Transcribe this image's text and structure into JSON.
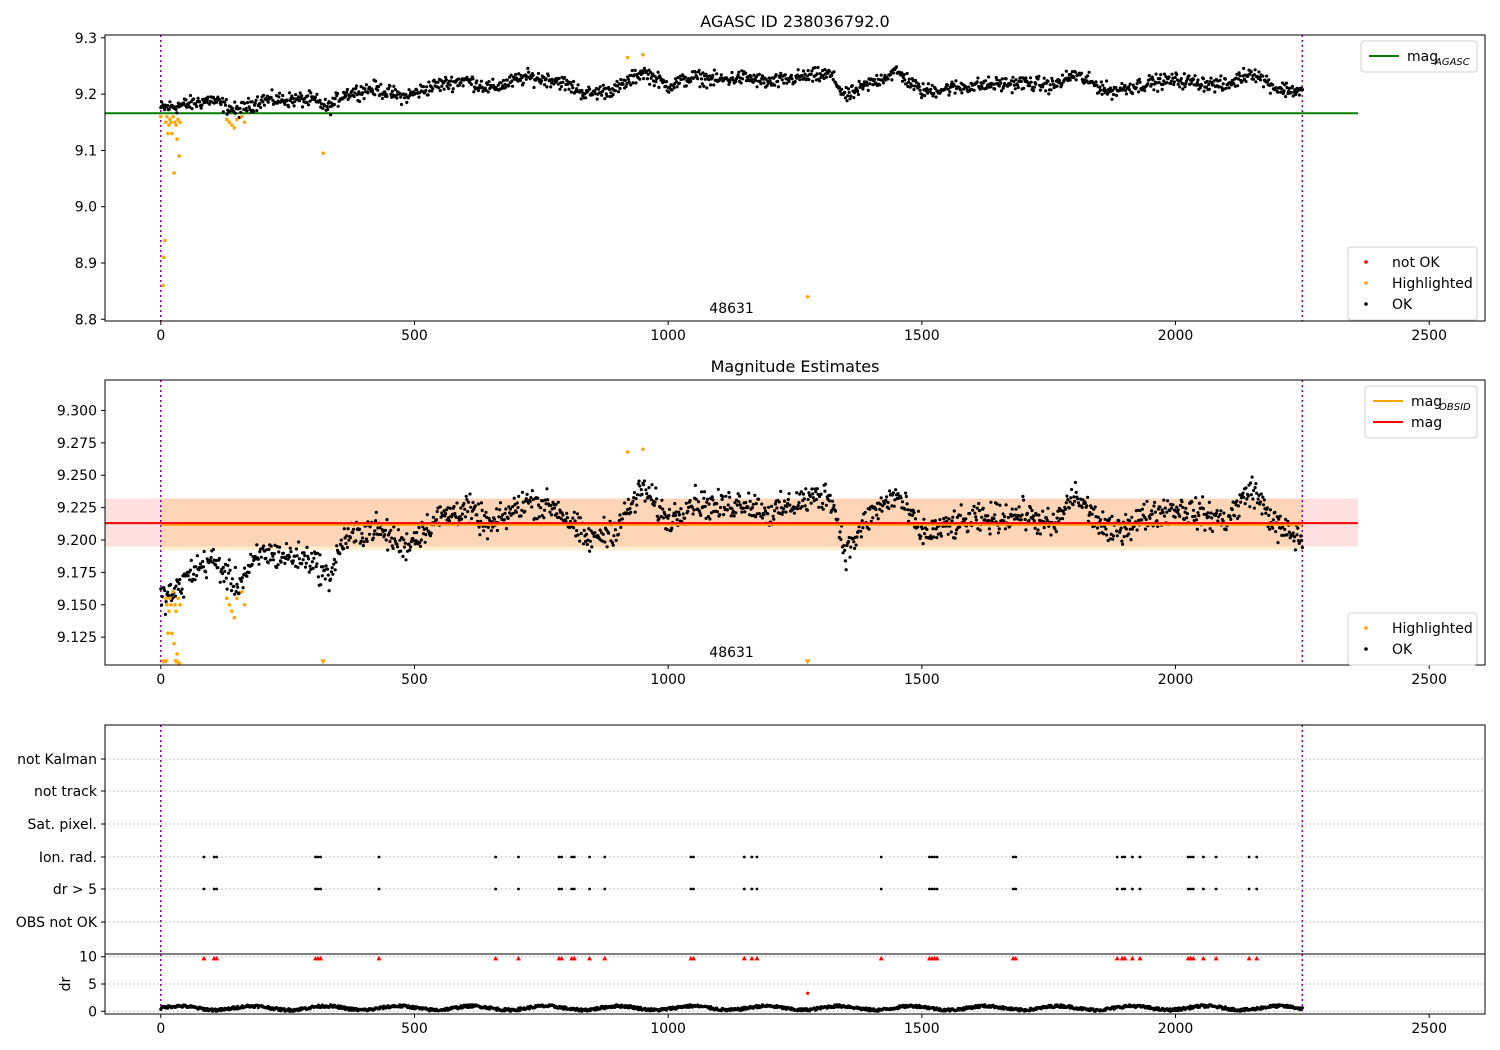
{
  "chart_data": [
    {
      "type": "scatter",
      "title": "AGASC ID 238036792.0",
      "xlim": [
        -110,
        2610
      ],
      "ylim": [
        8.797,
        9.305
      ],
      "xticks": [
        0,
        500,
        1000,
        1500,
        2000,
        2500
      ],
      "yticks": [
        8.8,
        8.9,
        9.0,
        9.1,
        9.2,
        9.3
      ],
      "ytick_labels": [
        "8.8",
        "8.9",
        "9.0",
        "9.1",
        "9.2",
        "9.3"
      ],
      "obsid_bounds": [
        0,
        2250
      ],
      "obsid_label": "48631",
      "obsid_label_x": 1125,
      "mag_agasc": 9.166,
      "line_xrange": [
        -110,
        2360
      ],
      "legend_lines": [
        {
          "label": "mag",
          "sub": "AGASC",
          "color": "#008000"
        }
      ],
      "legend_points": [
        {
          "label": "not OK",
          "color": "#ff0000"
        },
        {
          "label": "Highlighted",
          "color": "#ffa500"
        },
        {
          "label": "OK",
          "color": "#000000"
        }
      ],
      "highlighted_points": [
        [
          0,
          9.16
        ],
        [
          4,
          8.86
        ],
        [
          6,
          8.91
        ],
        [
          8,
          8.94
        ],
        [
          10,
          9.15
        ],
        [
          12,
          9.16
        ],
        [
          14,
          9.13
        ],
        [
          16,
          9.145
        ],
        [
          18,
          9.155
        ],
        [
          20,
          9.15
        ],
        [
          22,
          9.13
        ],
        [
          24,
          9.16
        ],
        [
          26,
          9.06
        ],
        [
          28,
          9.15
        ],
        [
          30,
          9.145
        ],
        [
          32,
          9.12
        ],
        [
          34,
          9.155
        ],
        [
          36,
          9.09
        ],
        [
          38,
          9.15
        ],
        [
          130,
          9.155
        ],
        [
          135,
          9.15
        ],
        [
          140,
          9.145
        ],
        [
          145,
          9.14
        ],
        [
          150,
          9.155
        ],
        [
          160,
          9.16
        ],
        [
          165,
          9.15
        ],
        [
          320,
          9.095
        ],
        [
          920,
          9.265
        ],
        [
          950,
          9.27
        ],
        [
          1275,
          8.84
        ]
      ],
      "ok_trend": [
        [
          0,
          9.175
        ],
        [
          40,
          9.18
        ],
        [
          100,
          9.19
        ],
        [
          150,
          9.17
        ],
        [
          200,
          9.19
        ],
        [
          300,
          9.19
        ],
        [
          330,
          9.175
        ],
        [
          360,
          9.2
        ],
        [
          420,
          9.21
        ],
        [
          480,
          9.195
        ],
        [
          540,
          9.215
        ],
        [
          600,
          9.225
        ],
        [
          650,
          9.21
        ],
        [
          720,
          9.23
        ],
        [
          780,
          9.225
        ],
        [
          840,
          9.2
        ],
        [
          900,
          9.21
        ],
        [
          950,
          9.24
        ],
        [
          1000,
          9.215
        ],
        [
          1050,
          9.23
        ],
        [
          1100,
          9.225
        ],
        [
          1150,
          9.23
        ],
        [
          1200,
          9.22
        ],
        [
          1260,
          9.23
        ],
        [
          1320,
          9.235
        ],
        [
          1350,
          9.195
        ],
        [
          1400,
          9.22
        ],
        [
          1450,
          9.24
        ],
        [
          1500,
          9.205
        ],
        [
          1600,
          9.215
        ],
        [
          1700,
          9.22
        ],
        [
          1760,
          9.215
        ],
        [
          1800,
          9.235
        ],
        [
          1870,
          9.205
        ],
        [
          1950,
          9.22
        ],
        [
          2000,
          9.225
        ],
        [
          2050,
          9.22
        ],
        [
          2100,
          9.215
        ],
        [
          2150,
          9.24
        ],
        [
          2200,
          9.21
        ],
        [
          2250,
          9.205
        ]
      ],
      "ok_count": 1500,
      "ok_jitter": 0.013
    },
    {
      "type": "scatter",
      "title": "Magnitude Estimates",
      "xlim": [
        -110,
        2610
      ],
      "ylim": [
        9.1035,
        9.3235
      ],
      "xticks": [
        0,
        500,
        1000,
        1500,
        2000,
        2500
      ],
      "yticks": [
        9.125,
        9.15,
        9.175,
        9.2,
        9.225,
        9.25,
        9.275,
        9.3
      ],
      "ytick_labels": [
        "9.125",
        "9.150",
        "9.175",
        "9.200",
        "9.225",
        "9.250",
        "9.275",
        "9.300"
      ],
      "obsid_bounds": [
        0,
        2250
      ],
      "obsid_label": "48631",
      "obsid_label_x": 1125,
      "mag": 9.213,
      "mag_band": [
        9.195,
        9.232
      ],
      "mag_obsid": 9.212,
      "mag_obsid_band": [
        9.192,
        9.232
      ],
      "mag_obsid_xrange": [
        0,
        2250
      ],
      "line_xrange": [
        -110,
        2360
      ],
      "legend_lines": [
        {
          "label": "mag",
          "sub": "OBSID",
          "color": "#ffa500"
        },
        {
          "label": "mag",
          "sub": "",
          "color": "#ff0000"
        }
      ],
      "legend_points": [
        {
          "label": "Highlighted",
          "color": "#ffa500"
        },
        {
          "label": "OK",
          "color": "#000000"
        }
      ],
      "highlighted_points": [
        [
          10,
          9.155
        ],
        [
          12,
          9.15
        ],
        [
          14,
          9.128
        ],
        [
          16,
          9.145
        ],
        [
          18,
          9.155
        ],
        [
          20,
          9.15
        ],
        [
          22,
          9.128
        ],
        [
          24,
          9.16
        ],
        [
          26,
          9.12
        ],
        [
          28,
          9.15
        ],
        [
          30,
          9.145
        ],
        [
          32,
          9.112
        ],
        [
          34,
          9.155
        ],
        [
          36,
          9.105
        ],
        [
          38,
          9.15
        ],
        [
          130,
          9.155
        ],
        [
          135,
          9.15
        ],
        [
          140,
          9.145
        ],
        [
          145,
          9.14
        ],
        [
          150,
          9.155
        ],
        [
          160,
          9.16
        ],
        [
          165,
          9.15
        ],
        [
          920,
          9.268
        ],
        [
          950,
          9.27
        ]
      ],
      "clipped_markers": [
        [
          5,
          9.1055
        ],
        [
          10,
          9.1055
        ],
        [
          30,
          9.1055
        ],
        [
          320,
          9.1055
        ],
        [
          1275,
          9.1055
        ]
      ],
      "ok_trend": [
        [
          0,
          9.155
        ],
        [
          30,
          9.16
        ],
        [
          60,
          9.175
        ],
        [
          100,
          9.185
        ],
        [
          150,
          9.165
        ],
        [
          200,
          9.19
        ],
        [
          300,
          9.185
        ],
        [
          330,
          9.17
        ],
        [
          360,
          9.2
        ],
        [
          420,
          9.21
        ],
        [
          480,
          9.195
        ],
        [
          540,
          9.215
        ],
        [
          600,
          9.225
        ],
        [
          650,
          9.21
        ],
        [
          720,
          9.23
        ],
        [
          780,
          9.225
        ],
        [
          840,
          9.2
        ],
        [
          900,
          9.21
        ],
        [
          950,
          9.24
        ],
        [
          1000,
          9.215
        ],
        [
          1050,
          9.23
        ],
        [
          1100,
          9.225
        ],
        [
          1150,
          9.23
        ],
        [
          1200,
          9.22
        ],
        [
          1260,
          9.23
        ],
        [
          1320,
          9.235
        ],
        [
          1350,
          9.19
        ],
        [
          1400,
          9.22
        ],
        [
          1450,
          9.235
        ],
        [
          1500,
          9.205
        ],
        [
          1600,
          9.215
        ],
        [
          1700,
          9.22
        ],
        [
          1760,
          9.21
        ],
        [
          1800,
          9.235
        ],
        [
          1870,
          9.205
        ],
        [
          1950,
          9.22
        ],
        [
          2000,
          9.225
        ],
        [
          2050,
          9.22
        ],
        [
          2100,
          9.215
        ],
        [
          2150,
          9.24
        ],
        [
          2200,
          9.21
        ],
        [
          2250,
          9.2
        ]
      ],
      "ok_count": 1500,
      "ok_jitter": 0.011
    },
    {
      "type": "scatter",
      "title": "",
      "xlim": [
        -110,
        2610
      ],
      "obsid_bounds": [
        0,
        2250
      ],
      "flag_rows": [
        "not Kalman",
        "not track",
        "Sat. pixel.",
        "Ion. rad.",
        "dr > 5",
        "OBS not OK"
      ],
      "flag_events": {
        "Ion. rad.": [
          85,
          105,
          110,
          305,
          310,
          315,
          430,
          660,
          705,
          785,
          790,
          810,
          815,
          845,
          875,
          1045,
          1050,
          1150,
          1165,
          1175,
          1420,
          1515,
          1520,
          1525,
          1530,
          1680,
          1685,
          1885,
          1895,
          1900,
          1915,
          1930,
          2025,
          2030,
          2035,
          2055,
          2080,
          2145,
          2160
        ],
        "dr > 5": [
          85,
          105,
          110,
          305,
          310,
          315,
          430,
          660,
          705,
          785,
          790,
          810,
          815,
          845,
          875,
          1045,
          1050,
          1150,
          1165,
          1175,
          1420,
          1515,
          1520,
          1525,
          1530,
          1680,
          1685,
          1885,
          1895,
          1900,
          1915,
          1930,
          2025,
          2030,
          2035,
          2055,
          2080,
          2145,
          2160
        ]
      }
    },
    {
      "type": "scatter",
      "title": "",
      "ylabel": "dr",
      "xlim": [
        -110,
        2610
      ],
      "ylim": [
        -0.5,
        10.5
      ],
      "xticks": [
        0,
        500,
        1000,
        1500,
        2000,
        2500
      ],
      "yticks": [
        0,
        5,
        10
      ],
      "ytick_labels": [
        "0",
        "5",
        "10"
      ],
      "obsid_bounds": [
        0,
        2250
      ],
      "clipped_high_x": [
        85,
        105,
        110,
        305,
        310,
        315,
        430,
        660,
        705,
        785,
        790,
        810,
        815,
        845,
        875,
        1045,
        1050,
        1150,
        1165,
        1175,
        1420,
        1515,
        1520,
        1525,
        1530,
        1680,
        1685,
        1885,
        1895,
        1900,
        1915,
        1930,
        2025,
        2030,
        2035,
        2055,
        2080,
        2145,
        2160
      ],
      "clipped_high_y": 9.7,
      "outlier_points": [
        [
          1275,
          3.3
        ]
      ],
      "ok_count": 1500,
      "ok_mean": 0.6,
      "ok_amplitude": 0.45
    }
  ]
}
